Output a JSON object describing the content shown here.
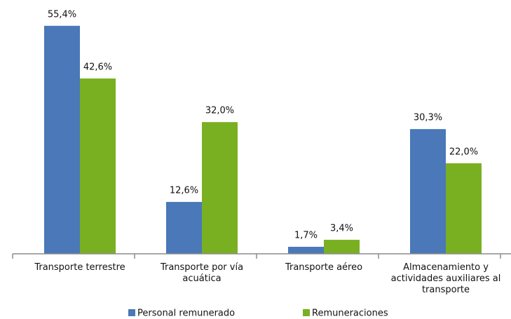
{
  "chart_data": {
    "type": "bar",
    "categories": [
      "Transporte terrestre",
      "Transporte por vía acuática",
      "Transporte aéreo",
      "Almacenamiento y actividades auxiliares al transporte"
    ],
    "series": [
      {
        "name": "Personal remunerado",
        "color": "#4a78b8",
        "values": [
          55.4,
          12.6,
          1.7,
          30.3
        ],
        "value_labels": [
          "55,4%",
          "12,6%",
          "1,7%",
          "30,3%"
        ]
      },
      {
        "name": "Remuneraciones",
        "color": "#79b022",
        "values": [
          42.6,
          32.0,
          3.4,
          22.0
        ],
        "value_labels": [
          "42,6%",
          "32,0%",
          "3,4%",
          "22,0%"
        ]
      }
    ],
    "legend": "bottom"
  }
}
